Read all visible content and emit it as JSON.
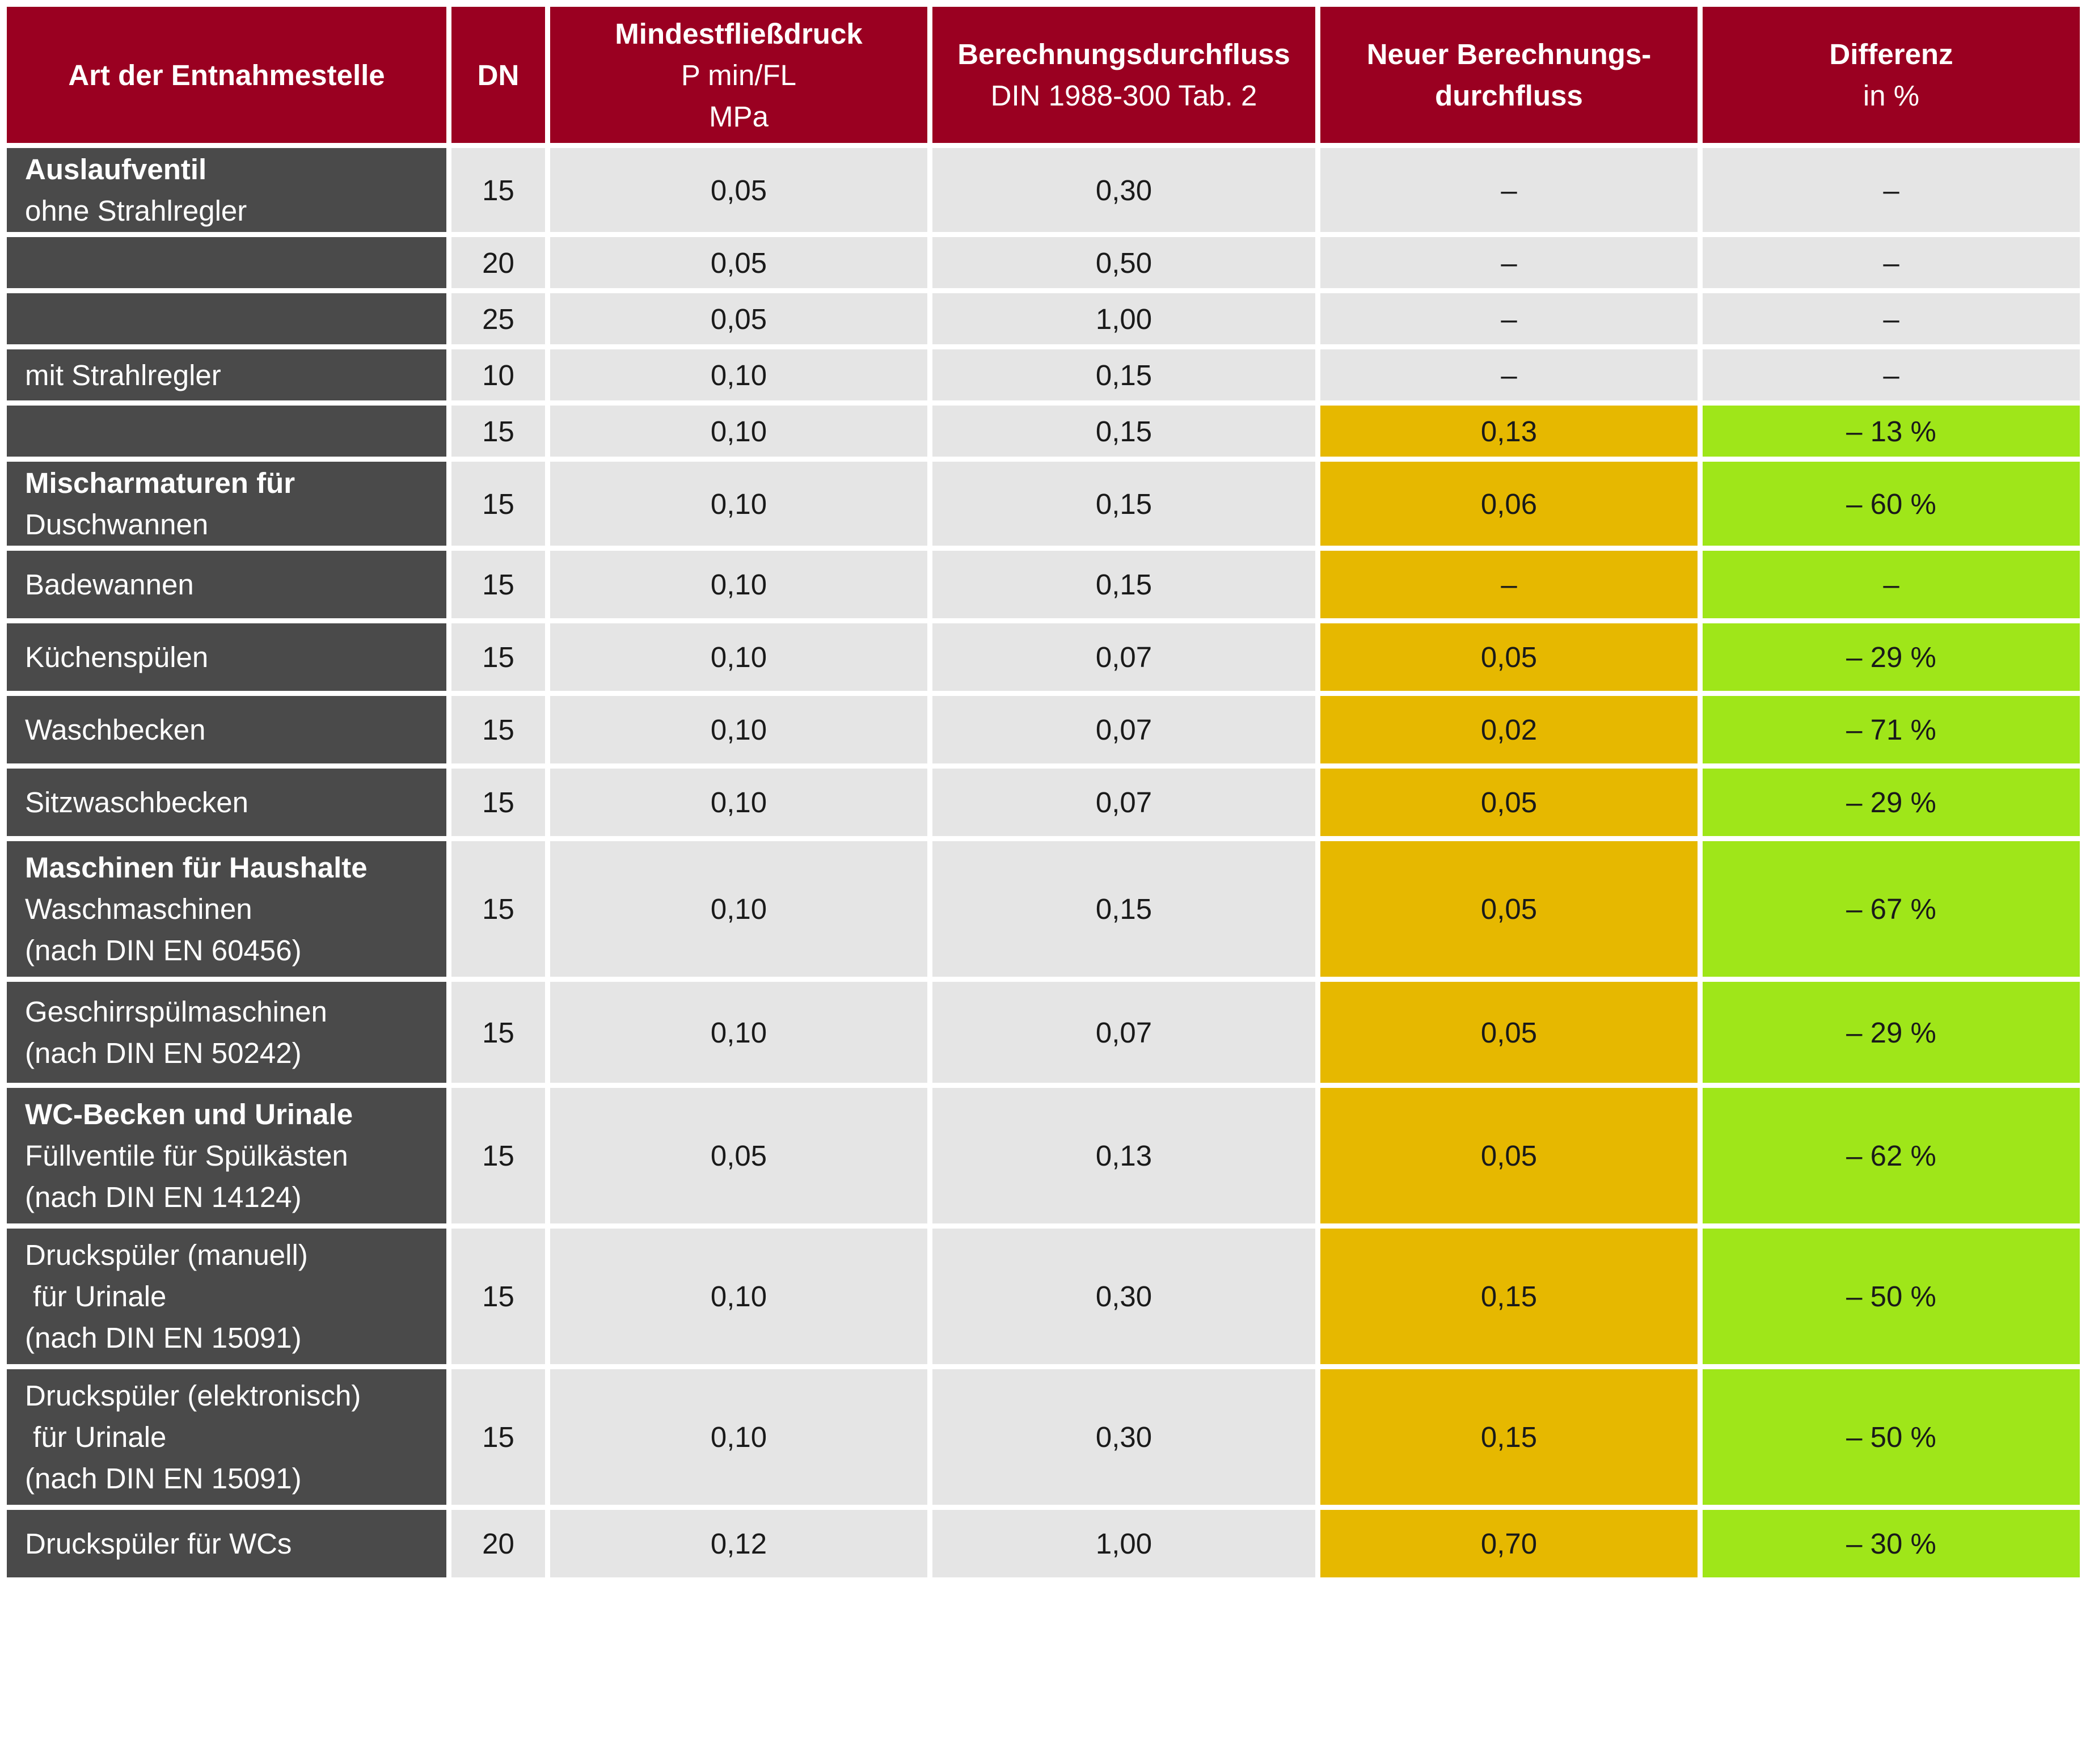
{
  "header": {
    "col1": "Art der Entnahmestelle",
    "col2": "DN",
    "col3": {
      "title": "Mindestfließdruck",
      "line1": "P min/FL",
      "line2": "MPa"
    },
    "col4": {
      "title": "Berechnungsdurchfluss",
      "line1": "DIN 1988-300 Tab. 2"
    },
    "col5": {
      "line1": "Neuer Berechnungs-",
      "line2": "durchfluss"
    },
    "col6": {
      "title": "Differenz",
      "line1": "in %"
    }
  },
  "rows": [
    {
      "group": "Auslaufventil",
      "lines": [
        "ohne Strahlregler",
        "",
        ""
      ],
      "dn": "15",
      "pmin": "0,05",
      "calc": "0,30",
      "new": "–",
      "diff": "–",
      "highlight": false
    },
    {
      "group": "",
      "lines": [
        "",
        "",
        ""
      ],
      "dn": "20",
      "pmin": "0,05",
      "calc": "0,50",
      "new": "–",
      "diff": "–",
      "highlight": false
    },
    {
      "group": "",
      "lines": [
        "",
        "",
        ""
      ],
      "dn": "25",
      "pmin": "0,05",
      "calc": "1,00",
      "new": "–",
      "diff": "–",
      "highlight": false
    },
    {
      "group": "",
      "lines": [
        "mit Strahlregler",
        "",
        ""
      ],
      "dn": "10",
      "pmin": "0,10",
      "calc": "0,15",
      "new": "–",
      "diff": "–",
      "highlight": false
    },
    {
      "group": "",
      "lines": [
        "",
        "",
        ""
      ],
      "dn": "15",
      "pmin": "0,10",
      "calc": "0,15",
      "new": "0,13",
      "diff": "– 13 %",
      "highlight": true
    },
    {
      "group": "Mischarmaturen für",
      "lines": [
        "Duschwannen",
        "",
        ""
      ],
      "dn": "15",
      "pmin": "0,10",
      "calc": "0,15",
      "new": "0,06",
      "diff": "– 60 %",
      "highlight": true
    },
    {
      "group": "",
      "lines": [
        "Badewannen",
        "",
        ""
      ],
      "dn": "15",
      "pmin": "0,10",
      "calc": "0,15",
      "new": "–",
      "diff": "–",
      "highlight": true
    },
    {
      "group": "",
      "lines": [
        "Küchenspülen",
        "",
        ""
      ],
      "dn": "15",
      "pmin": "0,10",
      "calc": "0,07",
      "new": "0,05",
      "diff": "– 29 %",
      "highlight": true
    },
    {
      "group": "",
      "lines": [
        "Waschbecken",
        "",
        ""
      ],
      "dn": "15",
      "pmin": "0,10",
      "calc": "0,07",
      "new": "0,02",
      "diff": "– 71 %",
      "highlight": true
    },
    {
      "group": "",
      "lines": [
        "Sitzwaschbecken",
        "",
        ""
      ],
      "dn": "15",
      "pmin": "0,10",
      "calc": "0,07",
      "new": "0,05",
      "diff": "– 29 %",
      "highlight": true
    },
    {
      "group": "Maschinen für Haushalte",
      "lines": [
        "Waschmaschinen",
        "(nach DIN EN 60456)",
        ""
      ],
      "dn": "15",
      "pmin": "0,10",
      "calc": "0,15",
      "new": "0,05",
      "diff": "– 67 %",
      "highlight": true
    },
    {
      "group": "",
      "lines": [
        "Geschirrspülmaschinen",
        "(nach DIN EN 50242)",
        ""
      ],
      "dn": "15",
      "pmin": "0,10",
      "calc": "0,07",
      "new": "0,05",
      "diff": "– 29 %",
      "highlight": true
    },
    {
      "group": "WC-Becken und Urinale",
      "lines": [
        "Füllventile für Spülkästen",
        "(nach DIN EN 14124)",
        ""
      ],
      "dn": "15",
      "pmin": "0,05",
      "calc": "0,13",
      "new": "0,05",
      "diff": "– 62 %",
      "highlight": true
    },
    {
      "group": "",
      "lines": [
        "Druckspüler (manuell)",
        " für Urinale",
        "(nach DIN EN 15091)"
      ],
      "dn": "15",
      "pmin": "0,10",
      "calc": "0,30",
      "new": "0,15",
      "diff": "– 50 %",
      "highlight": true
    },
    {
      "group": "",
      "lines": [
        "Druckspüler (elektronisch)",
        " für Urinale",
        "(nach DIN EN 15091)"
      ],
      "dn": "15",
      "pmin": "0,10",
      "calc": "0,30",
      "new": "0,15",
      "diff": "– 50 %",
      "highlight": true
    },
    {
      "group": "",
      "lines": [
        "Druckspüler für WCs",
        "",
        ""
      ],
      "dn": "20",
      "pmin": "0,12",
      "calc": "1,00",
      "new": "0,70",
      "diff": "– 30 %",
      "highlight": true
    }
  ]
}
